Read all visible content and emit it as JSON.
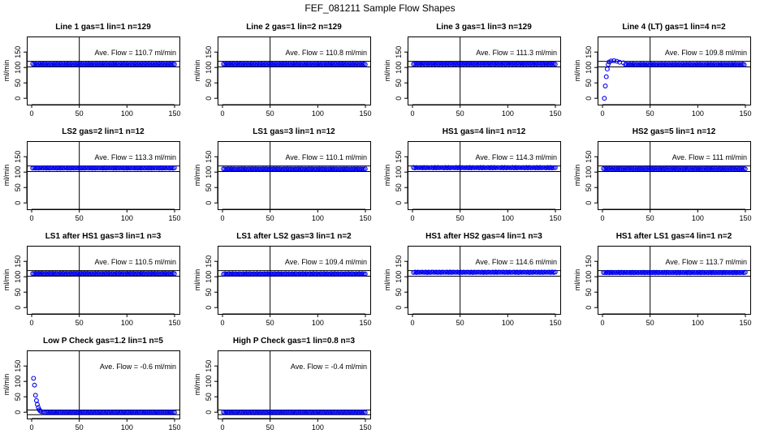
{
  "figure": {
    "title": "FEF_081211  Sample Flow Shapes"
  },
  "colors": {
    "points": "#0000ee",
    "axes": "#000000",
    "background": "#ffffff"
  },
  "chart_data": [
    {
      "type": "scatter",
      "title": "Line 1 gas=1 lin=1 n=129",
      "annotation": "Ave. Flow =  110.7  ml/min",
      "ylabel": "ml/min",
      "xlim": [
        0,
        150
      ],
      "ylim": [
        -10,
        190
      ],
      "xticks": [
        0,
        50,
        100,
        150
      ],
      "yticks": [
        0,
        50,
        100,
        150
      ],
      "vline_x": 50,
      "hlines": [
        102,
        120
      ],
      "flow": 110.7,
      "shape": "flat"
    },
    {
      "type": "scatter",
      "title": "Line 2 gas=1 lin=2 n=129",
      "annotation": "Ave. Flow =  110.8  ml/min",
      "ylabel": "ml/min",
      "xlim": [
        0,
        150
      ],
      "ylim": [
        -10,
        190
      ],
      "xticks": [
        0,
        50,
        100,
        150
      ],
      "yticks": [
        0,
        50,
        100,
        150
      ],
      "vline_x": 50,
      "hlines": [
        102,
        120
      ],
      "flow": 110.8,
      "shape": "flat"
    },
    {
      "type": "scatter",
      "title": "Line 3 gas=1 lin=3 n=129",
      "annotation": "Ave. Flow =  111.3  ml/min",
      "ylabel": "ml/min",
      "xlim": [
        0,
        150
      ],
      "ylim": [
        -10,
        190
      ],
      "xticks": [
        0,
        50,
        100,
        150
      ],
      "yticks": [
        0,
        50,
        100,
        150
      ],
      "vline_x": 50,
      "hlines": [
        102,
        120
      ],
      "flow": 111.3,
      "shape": "flat"
    },
    {
      "type": "scatter",
      "title": "Line 4 (LT) gas=1 lin=4 n=2",
      "annotation": "Ave. Flow =  109.8  ml/min",
      "ylabel": "ml/min",
      "xlim": [
        0,
        150
      ],
      "ylim": [
        -10,
        190
      ],
      "xticks": [
        0,
        50,
        100,
        150
      ],
      "yticks": [
        0,
        50,
        100,
        150
      ],
      "vline_x": 50,
      "hlines": [
        102,
        120
      ],
      "flow": 109.8,
      "shape": "ramp",
      "ramp_points": [
        [
          2,
          0
        ],
        [
          3,
          40
        ],
        [
          4,
          70
        ],
        [
          5,
          95
        ],
        [
          6,
          110
        ],
        [
          7,
          118
        ],
        [
          9,
          121
        ],
        [
          12,
          122
        ],
        [
          15,
          120
        ],
        [
          18,
          117
        ],
        [
          22,
          115
        ]
      ]
    },
    {
      "type": "scatter",
      "title": "LS2 gas=2 lin=1 n=12",
      "annotation": "Ave. Flow =  113.3  ml/min",
      "ylabel": "ml/min",
      "xlim": [
        0,
        150
      ],
      "ylim": [
        -10,
        190
      ],
      "xticks": [
        0,
        50,
        100,
        150
      ],
      "yticks": [
        0,
        50,
        100,
        150
      ],
      "vline_x": 50,
      "hlines": [
        102,
        120
      ],
      "flow": 113.3,
      "shape": "flat"
    },
    {
      "type": "scatter",
      "title": "LS1 gas=3 lin=1 n=12",
      "annotation": "Ave. Flow =  110.1  ml/min",
      "ylabel": "ml/min",
      "xlim": [
        0,
        150
      ],
      "ylim": [
        -10,
        190
      ],
      "xticks": [
        0,
        50,
        100,
        150
      ],
      "yticks": [
        0,
        50,
        100,
        150
      ],
      "vline_x": 50,
      "hlines": [
        102,
        120
      ],
      "flow": 110.1,
      "shape": "flat"
    },
    {
      "type": "scatter",
      "title": "HS1 gas=4 lin=1 n=12",
      "annotation": "Ave. Flow =  114.3  ml/min",
      "ylabel": "ml/min",
      "xlim": [
        0,
        150
      ],
      "ylim": [
        -10,
        190
      ],
      "xticks": [
        0,
        50,
        100,
        150
      ],
      "yticks": [
        0,
        50,
        100,
        150
      ],
      "vline_x": 50,
      "hlines": [
        102,
        120
      ],
      "flow": 114.3,
      "shape": "flat"
    },
    {
      "type": "scatter",
      "title": "HS2 gas=5 lin=1 n=12",
      "annotation": "Ave. Flow =  111  ml/min",
      "ylabel": "ml/min",
      "xlim": [
        0,
        150
      ],
      "ylim": [
        -10,
        190
      ],
      "xticks": [
        0,
        50,
        100,
        150
      ],
      "yticks": [
        0,
        50,
        100,
        150
      ],
      "vline_x": 50,
      "hlines": [
        102,
        120
      ],
      "flow": 111,
      "shape": "flat"
    },
    {
      "type": "scatter",
      "title": "LS1 after HS1 gas=3 lin=1 n=3",
      "annotation": "Ave. Flow =  110.5  ml/min",
      "ylabel": "ml/min",
      "xlim": [
        0,
        150
      ],
      "ylim": [
        -10,
        190
      ],
      "xticks": [
        0,
        50,
        100,
        150
      ],
      "yticks": [
        0,
        50,
        100,
        150
      ],
      "vline_x": 50,
      "hlines": [
        102,
        120
      ],
      "flow": 110.5,
      "shape": "flat"
    },
    {
      "type": "scatter",
      "title": "LS1 after LS2 gas=3 lin=1 n=2",
      "annotation": "Ave. Flow =  109.4  ml/min",
      "ylabel": "ml/min",
      "xlim": [
        0,
        150
      ],
      "ylim": [
        -10,
        190
      ],
      "xticks": [
        0,
        50,
        100,
        150
      ],
      "yticks": [
        0,
        50,
        100,
        150
      ],
      "vline_x": 50,
      "hlines": [
        102,
        120
      ],
      "flow": 109.4,
      "shape": "flat"
    },
    {
      "type": "scatter",
      "title": "HS1 after HS2 gas=4 lin=1 n=3",
      "annotation": "Ave. Flow =  114.6  ml/min",
      "ylabel": "ml/min",
      "xlim": [
        0,
        150
      ],
      "ylim": [
        -10,
        190
      ],
      "xticks": [
        0,
        50,
        100,
        150
      ],
      "yticks": [
        0,
        50,
        100,
        150
      ],
      "vline_x": 50,
      "hlines": [
        102,
        120
      ],
      "flow": 114.6,
      "shape": "flat"
    },
    {
      "type": "scatter",
      "title": "HS1 after LS1 gas=4 lin=1 n=2",
      "annotation": "Ave. Flow =  113.7  ml/min",
      "ylabel": "ml/min",
      "xlim": [
        0,
        150
      ],
      "ylim": [
        -10,
        190
      ],
      "xticks": [
        0,
        50,
        100,
        150
      ],
      "yticks": [
        0,
        50,
        100,
        150
      ],
      "vline_x": 50,
      "hlines": [
        102,
        120
      ],
      "flow": 113.7,
      "shape": "flat"
    },
    {
      "type": "scatter",
      "title": "Low P Check gas=1.2 lin=1 n=5",
      "annotation": "Ave. Flow =  -0.6  ml/min",
      "ylabel": "ml/min",
      "xlim": [
        0,
        150
      ],
      "ylim": [
        -10,
        190
      ],
      "xticks": [
        0,
        50,
        100,
        150
      ],
      "yticks": [
        0,
        50,
        100,
        150
      ],
      "vline_x": 50,
      "hlines": [
        -8,
        7
      ],
      "flow": -0.6,
      "shape": "decay",
      "ramp_points": [
        [
          2,
          110
        ],
        [
          3,
          88
        ],
        [
          4,
          55
        ],
        [
          5,
          38
        ],
        [
          6,
          25
        ],
        [
          7,
          15
        ],
        [
          8,
          8
        ],
        [
          9,
          4
        ],
        [
          10,
          2
        ],
        [
          12,
          1
        ]
      ]
    },
    {
      "type": "scatter",
      "title": "High P Check gas=1 lin=0.8 n=3",
      "annotation": "Ave. Flow =  -0.4  ml/min",
      "ylabel": "ml/min",
      "xlim": [
        0,
        150
      ],
      "ylim": [
        -10,
        190
      ],
      "xticks": [
        0,
        50,
        100,
        150
      ],
      "yticks": [
        0,
        50,
        100,
        150
      ],
      "vline_x": 50,
      "hlines": [
        -8,
        7
      ],
      "flow": -0.4,
      "shape": "flat"
    }
  ]
}
